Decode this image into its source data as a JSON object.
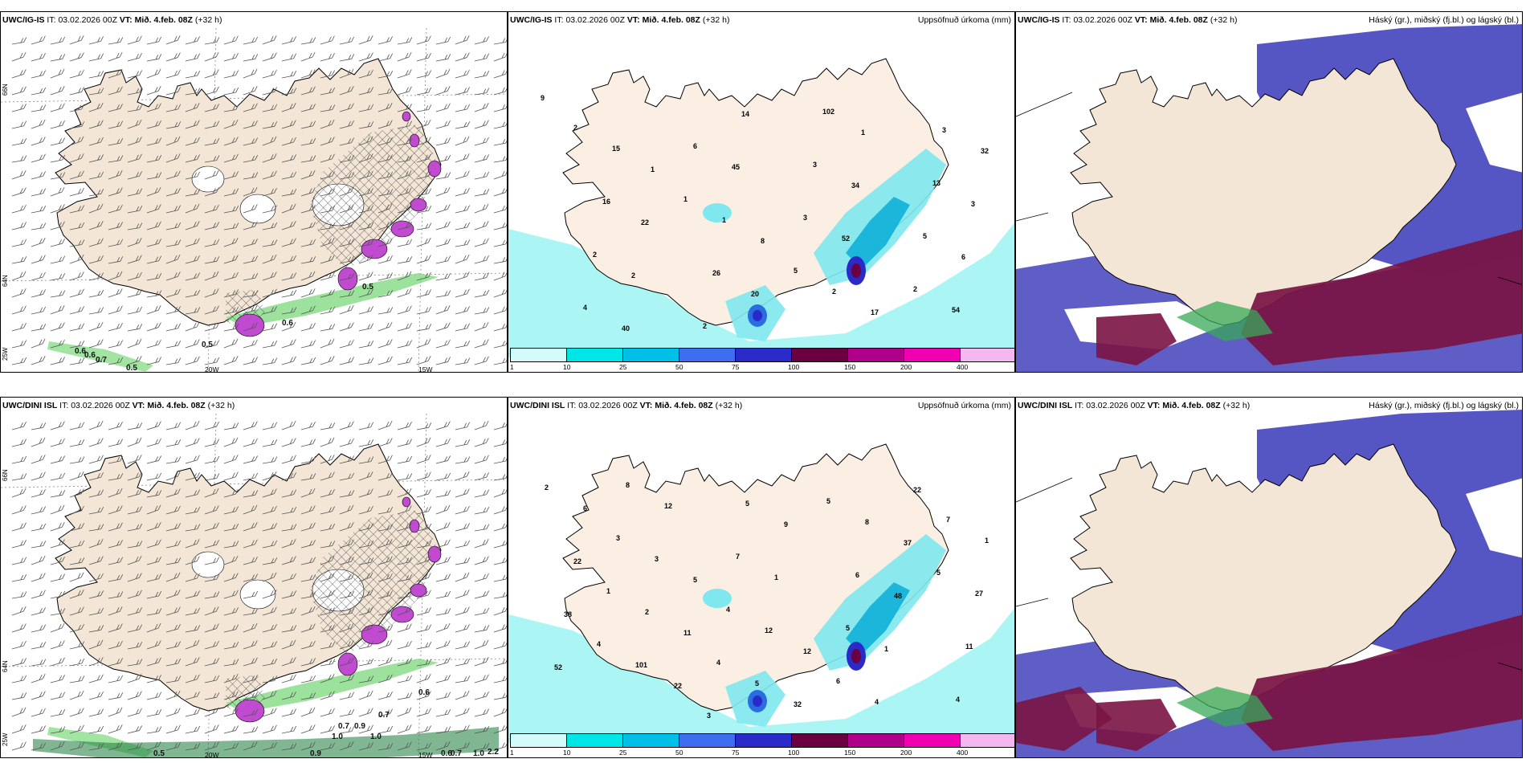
{
  "rows": [
    {
      "model": "UWC/IG-IS",
      "it_label": "IT:",
      "it": "03.02.2026 00Z",
      "vt_label": "VT:",
      "vt": "Mið. 4.feb. 08Z",
      "lead": "(+32 h)",
      "wind_values": [
        "0.6",
        "0.6",
        "0.7",
        "0.5",
        "0.5",
        "0.6",
        "0.5"
      ],
      "precip_values": [
        "9",
        "1",
        "8",
        "17",
        "32",
        "22",
        "20",
        "1",
        "3",
        "2",
        "14",
        "34",
        "6",
        "40",
        "45",
        "52",
        "54",
        "15",
        "1",
        "2",
        "3",
        "16",
        "26",
        "102",
        "13",
        "2",
        "2",
        "3",
        "5",
        "4",
        "6",
        "3",
        "2",
        "2",
        "1",
        "5"
      ]
    },
    {
      "model": "UWC/DINI ISL",
      "it_label": "IT:",
      "it": "03.02.2026 00Z",
      "vt_label": "VT:",
      "vt": "Mið. 4.feb. 08Z",
      "lead": "(+32 h)",
      "wind_values": [
        "0.6",
        "0.7",
        "0.9",
        "0.7",
        "1.0",
        "1.0",
        "0.5",
        "0.9",
        "0.7",
        "0.6",
        "1.0",
        "2.2"
      ],
      "precip_values": [
        "6",
        "5",
        "12",
        "22",
        "22",
        "11",
        "32",
        "37",
        "38",
        "22",
        "9",
        "48",
        "52",
        "12",
        "1",
        "1",
        "2",
        "3",
        "12",
        "4",
        "1",
        "2",
        "5",
        "8",
        "27",
        "101",
        "5",
        "6",
        "11",
        "8",
        "7",
        "5",
        "4",
        "3",
        "4",
        "6",
        "7",
        "1",
        "4",
        "5",
        "5",
        "4",
        "3"
      ]
    }
  ],
  "panels": {
    "precip_title": "Uppsöfnuð úrkoma (mm)",
    "cloud_title": "Háský (gr.), miðský (fj.bl.) og lágský (bl.)"
  },
  "axis_labels": {
    "lon": [
      "20W",
      "15W"
    ],
    "lat": [
      "66N",
      "64N",
      "25W"
    ]
  },
  "precip_colorbar": {
    "labels": [
      "1",
      "10",
      "25",
      "50",
      "75",
      "100",
      "150",
      "200",
      "400"
    ],
    "colors": [
      "#d4fbfb",
      "#00e6e6",
      "#00c0e8",
      "#3e6df0",
      "#2a2ac8",
      "#6a0040",
      "#b0008a",
      "#f000b0",
      "#f4b8f0"
    ]
  },
  "colors": {
    "land": "#f3e6d6",
    "land_pale": "#fbefe3",
    "sea": "#ffffff",
    "green_precip": "#7bd87b",
    "magenta_precip": "#c04ad0",
    "cyan_precip": "#9ef3f3",
    "high_cloud": "#4c4cc0",
    "mid_cloud": "#7a1444",
    "low_cloud": "#3aa858"
  }
}
